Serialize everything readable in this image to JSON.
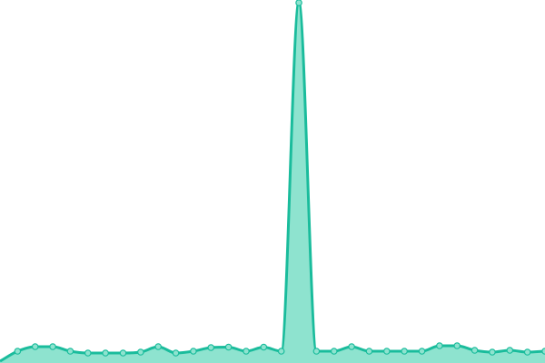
{
  "chart_data": {
    "type": "area",
    "title": "",
    "xlabel": "",
    "ylabel": "",
    "x": [
      0,
      1,
      2,
      3,
      4,
      5,
      6,
      7,
      8,
      9,
      10,
      11,
      12,
      13,
      14,
      15,
      16,
      17,
      18,
      19,
      20,
      21,
      22,
      23,
      24,
      25,
      26,
      27,
      28,
      29,
      30,
      31
    ],
    "values": [
      2,
      13,
      18,
      18,
      13,
      11,
      11,
      11,
      12,
      18,
      11,
      13,
      17,
      17.5,
      13,
      17.5,
      13,
      398,
      13,
      13,
      18,
      13,
      13,
      13,
      13,
      19,
      19,
      14,
      12,
      14,
      12,
      13
    ],
    "ylim": [
      0,
      400
    ],
    "grid": false,
    "legend": "none",
    "line_color": "#1abc9c",
    "fill_color": "#8ee3cf",
    "marker_fill": "#8ee3cf"
  }
}
